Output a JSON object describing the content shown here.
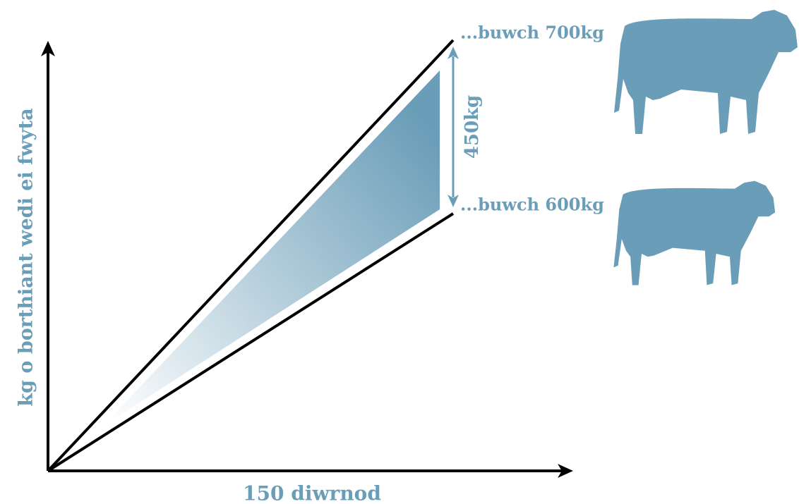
{
  "axes": {
    "x_label": "150 diwrnod",
    "y_label": "kg o borthiant wedi ei fwyta"
  },
  "lines": [
    {
      "label": "...buwch 700kg"
    },
    {
      "label": "...buwch 600kg"
    }
  ],
  "difference": {
    "label": "450kg"
  }
}
